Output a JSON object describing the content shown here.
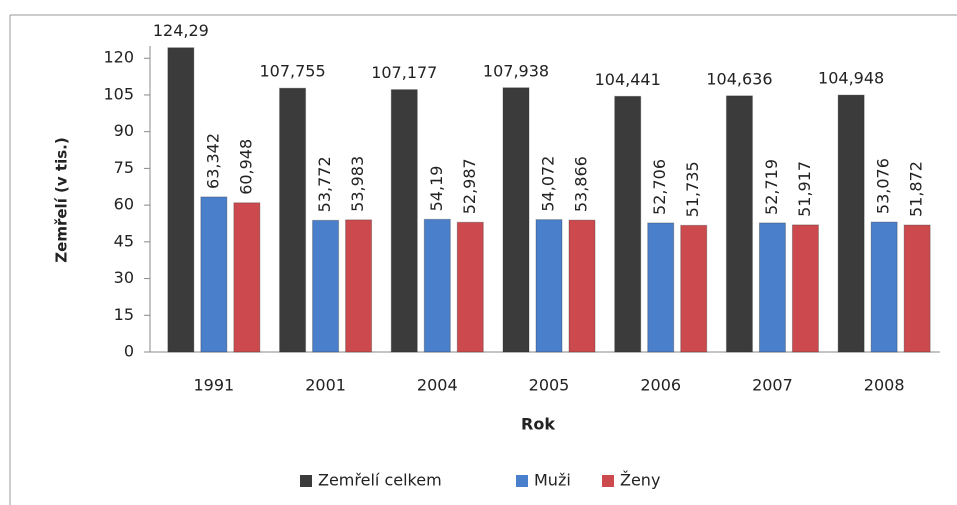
{
  "chart_data": {
    "type": "bar",
    "categories": [
      "1991",
      "2001",
      "2004",
      "2005",
      "2006",
      "2007",
      "2008"
    ],
    "series": [
      {
        "name": "Zemřelí celkem",
        "color": "#3b3b3b",
        "values": [
          124.29,
          107.755,
          107.177,
          107.938,
          104.441,
          104.636,
          104.948
        ],
        "value_labels": [
          "124,29",
          "107,755",
          "107,177",
          "107,938",
          "104,441",
          "104,636",
          "104,948"
        ]
      },
      {
        "name": "Muži",
        "color": "#4a7fcc",
        "values": [
          63.342,
          53.772,
          54.19,
          54.072,
          52.706,
          52.719,
          53.076
        ],
        "value_labels": [
          "63,342",
          "53,772",
          "54,19",
          "54,072",
          "52,706",
          "52,719",
          "53,076"
        ]
      },
      {
        "name": "Ženy",
        "color": "#cc4a4d",
        "values": [
          60.948,
          53.983,
          52.987,
          53.866,
          51.735,
          51.917,
          51.872
        ],
        "value_labels": [
          "60,948",
          "53,983",
          "52,987",
          "53,866",
          "51,735",
          "51,917",
          "51,872"
        ]
      }
    ],
    "xlabel": "Rok",
    "ylabel": "Zemřelí (v tis.)",
    "ylim": [
      0,
      125
    ],
    "yticks": [
      0,
      15,
      30,
      45,
      60,
      75,
      90,
      105,
      120
    ],
    "legend": "bottom"
  }
}
